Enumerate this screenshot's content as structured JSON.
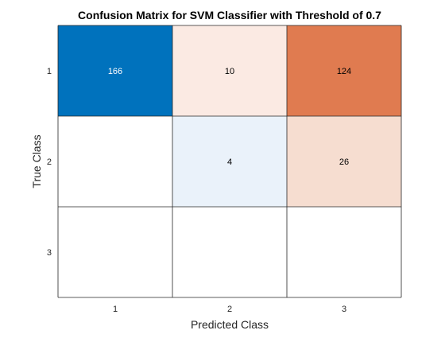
{
  "chart_data": {
    "type": "heatmap",
    "title": "Confusion Matrix for SVM Classifier with Threshold of 0.7",
    "xlabel": "Predicted Class",
    "ylabel": "True Class",
    "x_categories": [
      "1",
      "2",
      "3"
    ],
    "y_categories": [
      "1",
      "2",
      "3"
    ],
    "values": [
      [
        166,
        10,
        124
      ],
      [
        null,
        4,
        26
      ],
      [
        null,
        null,
        null
      ]
    ],
    "cell_colors": [
      [
        "#0072bd",
        "#fbeae3",
        "#e07b50"
      ],
      [
        "#ffffff",
        "#eaf2fa",
        "#f6ddd0"
      ],
      [
        "#ffffff",
        "#ffffff",
        "#ffffff"
      ]
    ],
    "text_colors": [
      [
        "#ffffff",
        "#000000",
        "#000000"
      ],
      [
        "#000000",
        "#000000",
        "#000000"
      ],
      [
        "#000000",
        "#000000",
        "#000000"
      ]
    ]
  }
}
